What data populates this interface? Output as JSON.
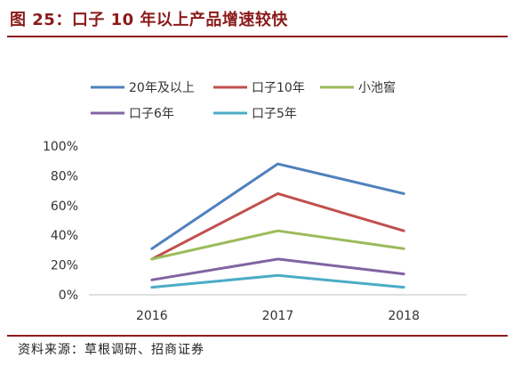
{
  "title": "图 25：口子 10 年以上产品增速较快",
  "source": "资料来源：草根调研、招商证券",
  "chart_data": {
    "type": "line",
    "title": "",
    "xlabel": "",
    "ylabel": "",
    "x": [
      "2016",
      "2017",
      "2018"
    ],
    "ylim": [
      0,
      100
    ],
    "yticks": [
      0,
      20,
      40,
      60,
      80,
      100
    ],
    "ytick_labels": [
      "0%",
      "20%",
      "40%",
      "60%",
      "80%",
      "100%"
    ],
    "grid": false,
    "legend_position": "top",
    "series": [
      {
        "name": "20年及以上",
        "values": [
          31,
          88,
          68
        ],
        "color": "#4F81BD"
      },
      {
        "name": "口子10年",
        "values": [
          24,
          68,
          43
        ],
        "color": "#C0504D"
      },
      {
        "name": "小池窖",
        "values": [
          24,
          43,
          31
        ],
        "color": "#9BBB59"
      },
      {
        "name": "口子6年",
        "values": [
          10,
          24,
          14
        ],
        "color": "#8064A2"
      },
      {
        "name": "口子5年",
        "values": [
          5,
          13,
          5
        ],
        "color": "#4BACC6"
      }
    ]
  }
}
